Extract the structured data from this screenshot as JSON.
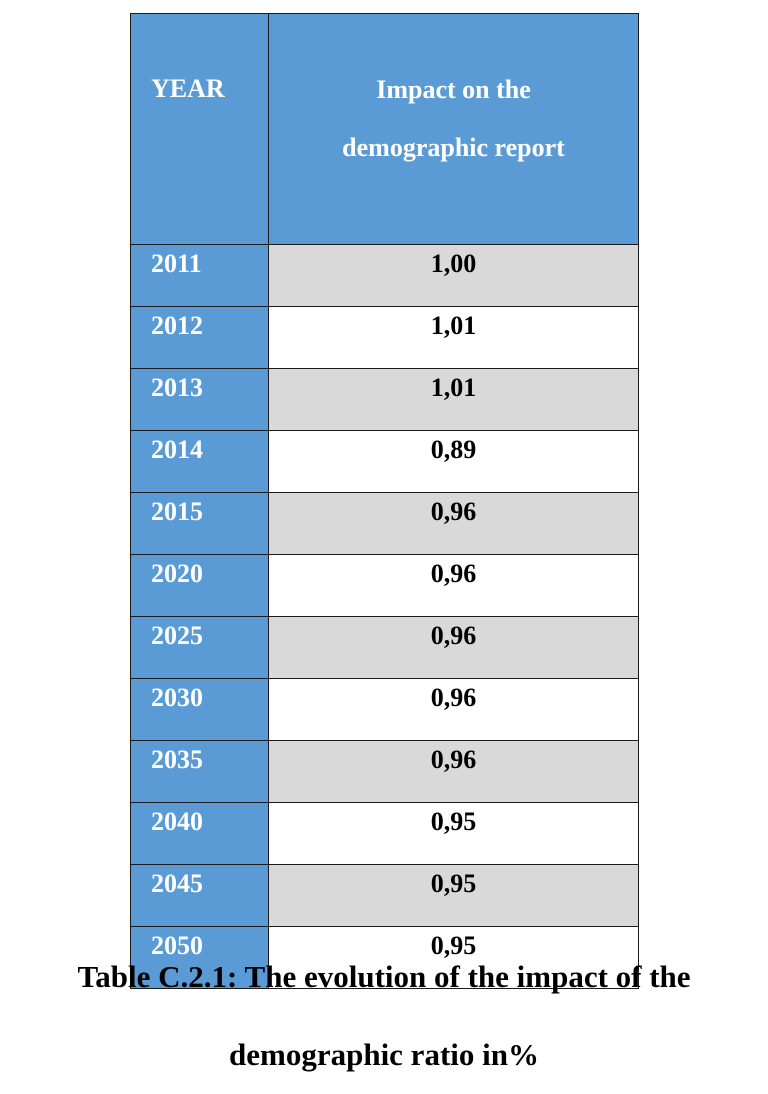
{
  "table": {
    "headers": {
      "year": "YEAR",
      "impact_line1": "Impact on the",
      "impact_line2": "demographic report"
    },
    "rows": [
      {
        "year": "2011",
        "value": "1,00"
      },
      {
        "year": "2012",
        "value": "1,01"
      },
      {
        "year": "2013",
        "value": "1,01"
      },
      {
        "year": "2014",
        "value": "0,89"
      },
      {
        "year": "2015",
        "value": "0,96"
      },
      {
        "year": "2020",
        "value": "0,96"
      },
      {
        "year": "2025",
        "value": "0,96"
      },
      {
        "year": "2030",
        "value": "0,96"
      },
      {
        "year": "2035",
        "value": "0,96"
      },
      {
        "year": "2040",
        "value": "0,95"
      },
      {
        "year": "2045",
        "value": "0,95"
      },
      {
        "year": "2050",
        "value": "0,95"
      }
    ]
  },
  "caption": {
    "line1": "Table C.2.1: The evolution of the impact of the",
    "line2": "demographic ratio in%"
  },
  "colors": {
    "header_blue": "#5b9bd5",
    "row_shade": "#d9d9d9"
  }
}
